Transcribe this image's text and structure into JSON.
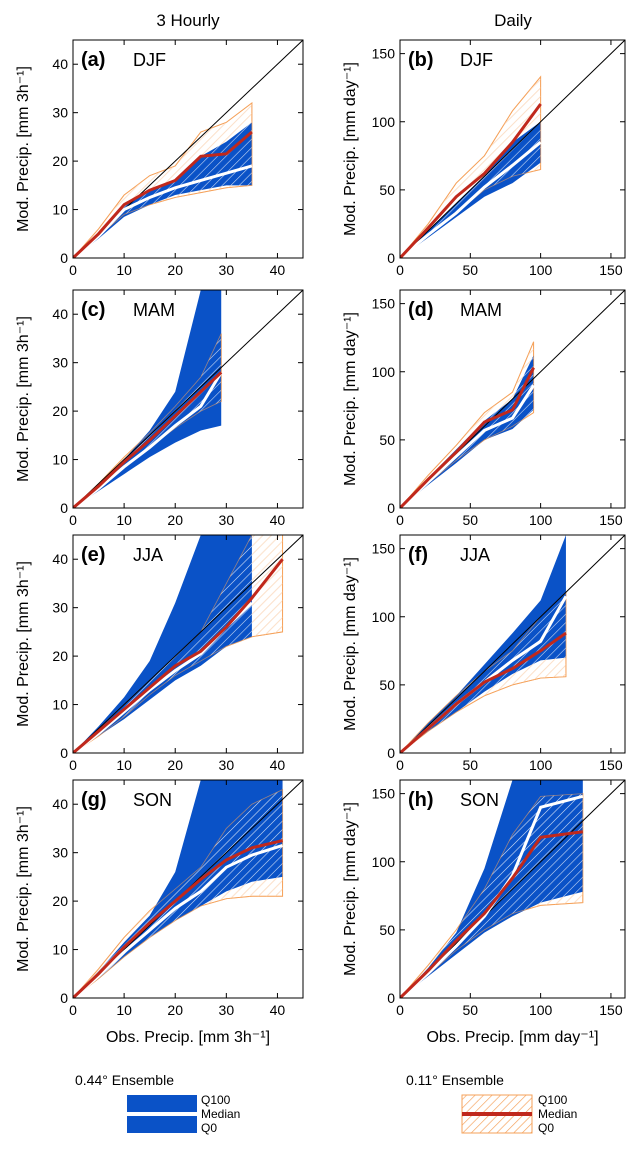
{
  "columns": [
    "3 Hourly",
    "Daily"
  ],
  "colors": {
    "ens044_fill": "#0a52c7",
    "ens044_median": "#ffffff",
    "ens011_hatch": "#f5a15a",
    "ens011_median": "#c0281c",
    "diagonal": "#000000"
  },
  "chart_data": [
    {
      "type": "line",
      "panel": "(a)",
      "season": "DJF",
      "ylabel": "Mod. Precip. [mm 3h⁻¹]",
      "xlabel": "",
      "xlim": [
        0,
        45
      ],
      "ylim": [
        0,
        45
      ],
      "xticks": [
        0,
        10,
        20,
        30,
        40
      ],
      "yticks": [
        0,
        10,
        20,
        30,
        40
      ],
      "series": [
        {
          "name": "0.44° Ensemble",
          "style": "band",
          "x": [
            0,
            5,
            10,
            15,
            20,
            25,
            30,
            35
          ],
          "q0": [
            0,
            4,
            8.5,
            11,
            13,
            14,
            15,
            15
          ],
          "median": [
            0,
            4.5,
            10,
            12.5,
            14.5,
            16,
            17.5,
            19
          ],
          "q100": [
            0,
            5,
            11,
            14,
            16,
            21,
            24,
            28
          ]
        },
        {
          "name": "0.11° Ensemble",
          "style": "hatch",
          "x": [
            0,
            5,
            10,
            15,
            20,
            25,
            30,
            35
          ],
          "q0": [
            0,
            4.5,
            9,
            11,
            12.5,
            13.5,
            14.5,
            15
          ],
          "median": [
            0,
            5,
            11,
            14,
            16,
            21,
            21.5,
            26
          ],
          "q100": [
            0,
            6,
            13,
            17,
            19,
            26,
            28,
            32
          ]
        }
      ]
    },
    {
      "type": "line",
      "panel": "(b)",
      "season": "DJF",
      "ylabel": "Mod. Precip. [mm day⁻¹]",
      "xlabel": "",
      "xlim": [
        0,
        160
      ],
      "ylim": [
        0,
        160
      ],
      "xticks": [
        0,
        50,
        100,
        150
      ],
      "yticks": [
        0,
        50,
        100,
        150
      ],
      "series": [
        {
          "name": "0.44° Ensemble",
          "style": "band",
          "x": [
            0,
            20,
            40,
            60,
            80,
            100
          ],
          "q0": [
            0,
            15,
            30,
            45,
            55,
            70
          ],
          "median": [
            0,
            17,
            33,
            52,
            68,
            85
          ],
          "q100": [
            0,
            20,
            40,
            60,
            85,
            100
          ]
        },
        {
          "name": "0.11° Ensemble",
          "style": "hatch",
          "x": [
            0,
            20,
            40,
            60,
            80,
            100
          ],
          "q0": [
            0,
            17,
            33,
            50,
            60,
            65
          ],
          "median": [
            0,
            22,
            45,
            62,
            85,
            113
          ],
          "q100": [
            0,
            25,
            55,
            75,
            108,
            133
          ]
        }
      ]
    },
    {
      "type": "line",
      "panel": "(c)",
      "season": "MAM",
      "ylabel": "Mod. Precip. [mm 3h⁻¹]",
      "xlabel": "",
      "xlim": [
        0,
        45
      ],
      "ylim": [
        0,
        45
      ],
      "xticks": [
        0,
        10,
        20,
        30,
        40
      ],
      "yticks": [
        0,
        10,
        20,
        30,
        40
      ],
      "series": [
        {
          "name": "0.44° Ensemble",
          "style": "band",
          "x": [
            0,
            5,
            10,
            15,
            20,
            25,
            29
          ],
          "q0": [
            0,
            3.5,
            7,
            10.5,
            13.5,
            16,
            17
          ],
          "median": [
            0,
            4,
            8.5,
            12.5,
            17,
            21,
            28
          ],
          "q100": [
            0,
            5,
            10,
            16,
            24,
            45,
            45
          ]
        },
        {
          "name": "0.11° Ensemble",
          "style": "hatch",
          "x": [
            0,
            5,
            10,
            15,
            20,
            25,
            29
          ],
          "q0": [
            0,
            4,
            8.5,
            12.5,
            16.5,
            20,
            22
          ],
          "median": [
            0,
            4.5,
            9.5,
            14,
            19,
            24,
            28
          ],
          "q100": [
            0,
            5,
            10.5,
            15.5,
            21,
            27,
            36
          ]
        }
      ]
    },
    {
      "type": "line",
      "panel": "(d)",
      "season": "MAM",
      "ylabel": "Mod. Precip. [mm day⁻¹]",
      "xlabel": "",
      "xlim": [
        0,
        160
      ],
      "ylim": [
        0,
        160
      ],
      "xticks": [
        0,
        50,
        100,
        150
      ],
      "yticks": [
        0,
        50,
        100,
        150
      ],
      "series": [
        {
          "name": "0.44° Ensemble",
          "style": "band",
          "x": [
            0,
            20,
            40,
            60,
            80,
            95
          ],
          "q0": [
            0,
            17,
            33,
            50,
            58,
            72
          ],
          "median": [
            0,
            19,
            38,
            57,
            66,
            90
          ],
          "q100": [
            0,
            22,
            43,
            64,
            80,
            112
          ]
        },
        {
          "name": "0.11° Ensemble",
          "style": "hatch",
          "x": [
            0,
            20,
            40,
            60,
            80,
            95
          ],
          "q0": [
            0,
            18,
            35,
            50,
            60,
            70
          ],
          "median": [
            0,
            21,
            41,
            63,
            72,
            103
          ],
          "q100": [
            0,
            24,
            46,
            70,
            85,
            122
          ]
        }
      ]
    },
    {
      "type": "line",
      "panel": "(e)",
      "season": "JJA",
      "ylabel": "Mod. Precip. [mm 3h⁻¹]",
      "xlabel": "",
      "xlim": [
        0,
        45
      ],
      "ylim": [
        0,
        45
      ],
      "xticks": [
        0,
        10,
        20,
        30,
        40
      ],
      "yticks": [
        0,
        10,
        20,
        30,
        40
      ],
      "series": [
        {
          "name": "0.44° Ensemble",
          "style": "band",
          "x": [
            0,
            5,
            10,
            15,
            20,
            25,
            30,
            35
          ],
          "q0": [
            0,
            3.5,
            7,
            11,
            15,
            18,
            22,
            24
          ],
          "median": [
            0,
            4,
            8.5,
            13,
            17,
            20.5,
            26,
            31
          ],
          "q100": [
            0,
            5.5,
            11.5,
            19,
            31,
            45,
            45,
            45
          ]
        },
        {
          "name": "0.11° Ensemble",
          "style": "hatch",
          "x": [
            0,
            5,
            10,
            15,
            20,
            25,
            30,
            35,
            41
          ],
          "q0": [
            0,
            3.5,
            7.5,
            12,
            16,
            19,
            22,
            24,
            25
          ],
          "median": [
            0,
            4.5,
            9,
            13.5,
            18,
            21,
            26,
            32,
            40
          ],
          "q100": [
            0,
            5,
            10,
            15,
            20,
            25,
            35,
            45,
            45
          ]
        }
      ]
    },
    {
      "type": "line",
      "panel": "(f)",
      "season": "JJA",
      "ylabel": "Mod. Precip. [mm day⁻¹]",
      "xlabel": "",
      "xlim": [
        0,
        160
      ],
      "ylim": [
        0,
        160
      ],
      "xticks": [
        0,
        50,
        100,
        150
      ],
      "yticks": [
        0,
        50,
        100,
        150
      ],
      "series": [
        {
          "name": "0.44° Ensemble",
          "style": "band",
          "x": [
            0,
            20,
            40,
            60,
            80,
            100,
            118
          ],
          "q0": [
            0,
            16,
            30,
            45,
            58,
            68,
            70
          ],
          "median": [
            0,
            18,
            36,
            52,
            68,
            82,
            115
          ],
          "q100": [
            0,
            22,
            42,
            65,
            88,
            112,
            160
          ]
        },
        {
          "name": "0.11° Ensemble",
          "style": "hatch",
          "x": [
            0,
            20,
            40,
            60,
            80,
            100,
            118
          ],
          "q0": [
            0,
            16,
            30,
            42,
            50,
            55,
            56
          ],
          "median": [
            0,
            18,
            36,
            52,
            62,
            75,
            88
          ],
          "q100": [
            0,
            22,
            42,
            60,
            75,
            100,
            118
          ]
        }
      ]
    },
    {
      "type": "line",
      "panel": "(g)",
      "season": "SON",
      "ylabel": "Mod. Precip. [mm 3h⁻¹]",
      "xlabel": "Obs. Precip. [mm 3h⁻¹]",
      "xlim": [
        0,
        45
      ],
      "ylim": [
        0,
        45
      ],
      "xticks": [
        0,
        10,
        20,
        30,
        40
      ],
      "yticks": [
        0,
        10,
        20,
        30,
        40
      ],
      "series": [
        {
          "name": "0.44° Ensemble",
          "style": "band",
          "x": [
            0,
            5,
            10,
            15,
            20,
            25,
            30,
            35,
            41
          ],
          "q0": [
            0,
            4,
            8.5,
            12.5,
            16,
            19,
            22,
            24,
            25
          ],
          "median": [
            0,
            4.5,
            9.5,
            14,
            18.5,
            22,
            27,
            29.5,
            31.5
          ],
          "q100": [
            0,
            5.5,
            11.5,
            17,
            26,
            45,
            45,
            45,
            45
          ]
        },
        {
          "name": "0.11° Ensemble",
          "style": "hatch",
          "x": [
            0,
            5,
            10,
            15,
            20,
            25,
            30,
            35,
            41
          ],
          "q0": [
            0,
            4,
            8.5,
            12.5,
            16,
            19,
            20.5,
            21,
            21
          ],
          "median": [
            0,
            5,
            10.5,
            15.5,
            20,
            24.5,
            28.5,
            31,
            32.5
          ],
          "q100": [
            0,
            6,
            12.5,
            18,
            22.5,
            27,
            35,
            40,
            43
          ]
        }
      ]
    },
    {
      "type": "line",
      "panel": "(h)",
      "season": "SON",
      "ylabel": "Mod. Precip. [mm day⁻¹]",
      "xlabel": "Obs. Precip. [mm day⁻¹]",
      "xlim": [
        0,
        160
      ],
      "ylim": [
        0,
        160
      ],
      "xticks": [
        0,
        50,
        100,
        150
      ],
      "yticks": [
        0,
        50,
        100,
        150
      ],
      "series": [
        {
          "name": "0.44° Ensemble",
          "style": "band",
          "x": [
            0,
            20,
            40,
            60,
            80,
            100,
            130
          ],
          "q0": [
            0,
            16,
            32,
            48,
            60,
            70,
            78
          ],
          "median": [
            0,
            18,
            38,
            60,
            90,
            140,
            148
          ],
          "q100": [
            0,
            22,
            48,
            95,
            160,
            160,
            160
          ]
        },
        {
          "name": "0.11° Ensemble",
          "style": "hatch",
          "x": [
            0,
            20,
            40,
            60,
            80,
            100,
            130
          ],
          "q0": [
            0,
            17,
            35,
            50,
            62,
            68,
            70
          ],
          "median": [
            0,
            20,
            42,
            62,
            88,
            118,
            122
          ],
          "q100": [
            0,
            24,
            50,
            80,
            120,
            148,
            150
          ]
        }
      ]
    }
  ],
  "legend": {
    "ens044": {
      "title": "0.44° Ensemble",
      "q100": "Q100",
      "median": "Median",
      "q0": "Q0"
    },
    "ens011": {
      "title": "0.11° Ensemble",
      "q100": "Q100",
      "median": "Median",
      "q0": "Q0"
    }
  }
}
